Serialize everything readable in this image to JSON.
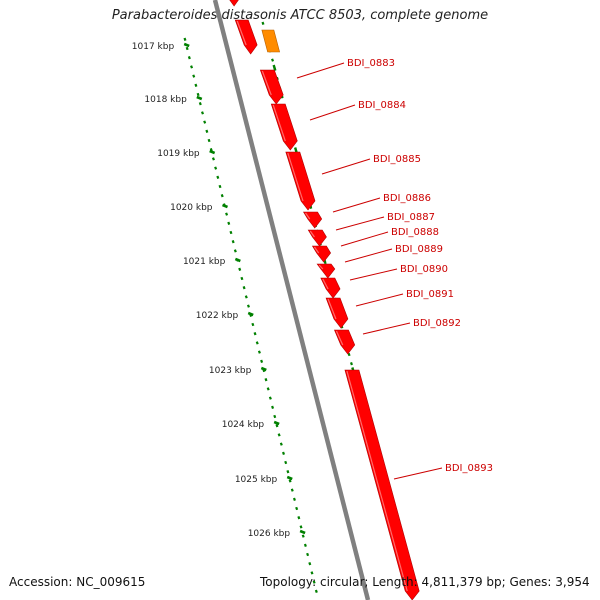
{
  "title": "Parabacteroides distasonis ATCC 8503, complete genome",
  "footer": {
    "accession": "Accession: NC_009615",
    "stats": "Topology: circular; Length: 4,811,379 bp; Genes: 3,954"
  },
  "scale": {
    "labels": [
      "1017 kbp",
      "1018 kbp",
      "1019 kbp",
      "1020 kbp",
      "1021 kbp",
      "1022 kbp",
      "1023 kbp",
      "1024 kbp",
      "1025 kbp",
      "1026 kbp"
    ]
  },
  "colors": {
    "gene": "#ff0000",
    "gene_alt": "#ff8c00",
    "label": "#cc0000",
    "backbone": "#808080",
    "ticks": "#008000"
  },
  "genes": [
    {
      "name": "BDI_0883"
    },
    {
      "name": "BDI_0884"
    },
    {
      "name": "BDI_0885"
    },
    {
      "name": "BDI_0886"
    },
    {
      "name": "BDI_0887"
    },
    {
      "name": "BDI_0888"
    },
    {
      "name": "BDI_0889"
    },
    {
      "name": "BDI_0890"
    },
    {
      "name": "BDI_0891"
    },
    {
      "name": "BDI_0892"
    },
    {
      "name": "BDI_0893"
    }
  ]
}
